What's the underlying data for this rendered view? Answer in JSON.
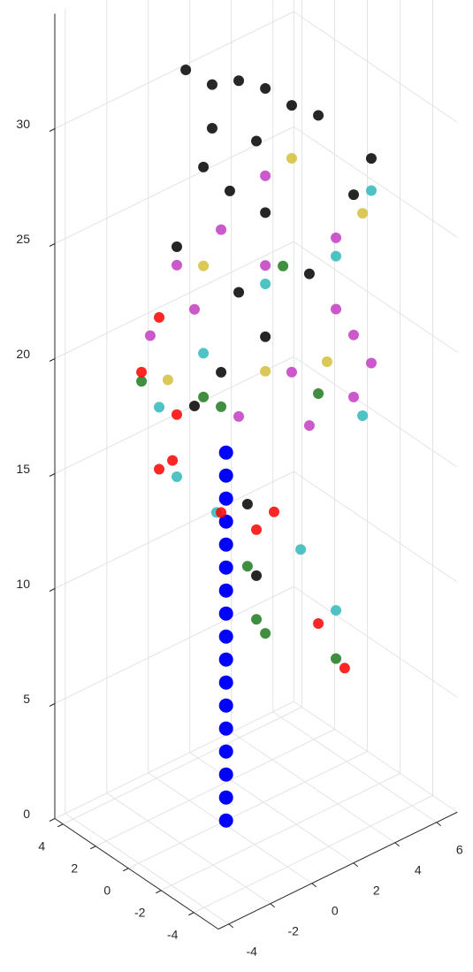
{
  "chart_data": {
    "type": "scatter3d",
    "xlim": [
      -5.5,
      4.5
    ],
    "ylim": [
      -4.5,
      7
    ],
    "zlim": [
      0,
      35
    ],
    "xticks": [
      4,
      2,
      0,
      -2,
      -4
    ],
    "yticks": [
      -4,
      -2,
      0,
      2,
      4,
      6
    ],
    "zticks": [
      0,
      5,
      10,
      15,
      20,
      25,
      30
    ],
    "grid": true,
    "series": [
      {
        "color": "#0000ff",
        "x": [
          0,
          0,
          0,
          0,
          0,
          0,
          0,
          0,
          0,
          0,
          0,
          0,
          0,
          0,
          0,
          0,
          0
        ],
        "y": [
          0.2,
          0.2,
          0.2,
          0.2,
          0.2,
          0.2,
          0.2,
          0.2,
          0.2,
          0.2,
          0.2,
          0.2,
          0.2,
          0.2,
          0.2,
          0.2,
          0.2
        ],
        "z": [
          0,
          1,
          2,
          3,
          4,
          5,
          6,
          7,
          8,
          9,
          10,
          11,
          12,
          13,
          14,
          15,
          16
        ]
      },
      {
        "color": "#000000",
        "x": [
          0,
          0,
          0,
          0,
          0,
          0,
          0,
          0,
          0,
          0,
          0,
          0,
          0,
          0,
          0,
          0,
          0,
          0,
          0,
          0,
          0
        ],
        "y": [
          -1.74,
          -0.47,
          0.81,
          2.09,
          -0.47,
          1.66,
          -0.89,
          0.38,
          2.09,
          -2.17,
          4.21,
          0.81,
          2.09,
          -0.04,
          -1.32,
          6.34,
          7.19,
          3.36,
          4.64,
          1.23,
          1.66
        ],
        "z": [
          33.5,
          32.3,
          31.9,
          31.0,
          30.4,
          28.9,
          28.9,
          27.3,
          25.6,
          26.0,
          22.0,
          22.7,
          20.2,
          19.6,
          18.7,
          24.5,
          25.7,
          29.7,
          28.7,
          13.3,
          10.0
        ]
      },
      {
        "color": "#c23cc2",
        "x": [
          0,
          0,
          0,
          0,
          0,
          0,
          0,
          0,
          0,
          0,
          0,
          0,
          0,
          0
        ],
        "y": [
          2.09,
          5.49,
          -0.04,
          -2.17,
          3.36,
          6.34,
          0.81,
          4.21,
          6.34,
          -1.32,
          2.09,
          5.49,
          -3.45,
          7.19
        ],
        "z": [
          23.3,
          19.9,
          25.8,
          25.2,
          18.1,
          15.7,
          17.3,
          15.4,
          18.4,
          22.9,
          27.2,
          23.0,
          22.7,
          16.8
        ]
      },
      {
        "color": "#30b8b8",
        "x": [
          0,
          0,
          0,
          0,
          0,
          0,
          0,
          0,
          0,
          0
        ],
        "y": [
          -0.26,
          3.79,
          7.19,
          5.49,
          -2.17,
          -3.02,
          2.09,
          5.49,
          -0.89,
          6.77
        ],
        "z": [
          13.6,
          10.2,
          24.3,
          22.2,
          16.0,
          19.4,
          22.5,
          6.8,
          20.8,
          14.7
        ]
      },
      {
        "color": "#d4be3a",
        "x": [
          0,
          0,
          0,
          0,
          0,
          0
        ],
        "y": [
          -0.89,
          6.77,
          2.09,
          -2.6,
          3.36,
          5.06
        ],
        "z": [
          24.6,
          23.5,
          18.7,
          20.4,
          27.4,
          17.8
        ]
      },
      {
        "color": "#1e7a1e",
        "x": [
          0,
          0,
          0,
          0,
          0,
          0,
          0,
          0,
          0
        ],
        "y": [
          -3.87,
          -0.04,
          1.23,
          1.66,
          2.09,
          5.49,
          -0.89,
          2.94,
          4.64
        ],
        "z": [
          20.9,
          18.1,
          10.6,
          8.1,
          7.3,
          4.7,
          18.9,
          22.9,
          16.6
        ]
      },
      {
        "color": "#ff0000",
        "x": [
          0,
          0,
          0,
          0,
          0,
          0,
          0,
          0,
          0,
          0
        ],
        "y": [
          -3.02,
          -2.38,
          -3.02,
          -0.04,
          1.66,
          4.64,
          5.91,
          -3.87,
          -2.17,
          2.51
        ],
        "z": [
          23.3,
          16.8,
          16.7,
          13.5,
          12.0,
          6.6,
          4.1,
          21.3,
          18.7,
          12.4
        ]
      }
    ]
  }
}
